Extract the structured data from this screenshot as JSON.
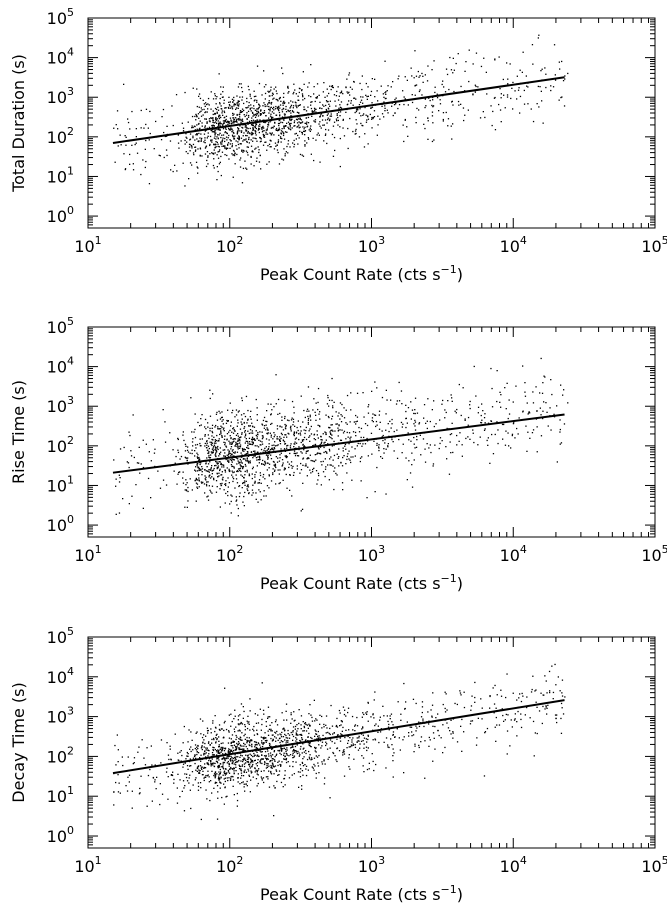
{
  "chart_data": [
    {
      "type": "scatter",
      "xlabel": "Peak Count Rate (cts s",
      "xlabel_sup": "−1",
      "xlabel_tail": ")",
      "ylabel": "Total Duration (s)",
      "xscale": "log",
      "yscale": "log",
      "xlim": [
        10,
        100000
      ],
      "ylim": [
        0.5,
        100000
      ],
      "xticks": [
        10,
        100,
        1000,
        10000,
        100000
      ],
      "xtick_exps": [
        "1",
        "2",
        "3",
        "4",
        "5"
      ],
      "yticks": [
        1,
        10,
        100,
        1000,
        10000,
        100000
      ],
      "ytick_exps": [
        "0",
        "1",
        "2",
        "3",
        "4",
        "5"
      ],
      "grid": false,
      "fit_line": {
        "x": [
          15,
          23000
        ],
        "y": [
          70,
          3200
        ]
      },
      "cloud": {
        "x_center": 80,
        "x_spread": 0.55,
        "y_center": 160,
        "y_spread": 0.45,
        "slope": 0.52,
        "n": 1700,
        "seed": 11
      }
    },
    {
      "type": "scatter",
      "xlabel": "Peak Count Rate (cts s",
      "xlabel_sup": "−1",
      "xlabel_tail": ")",
      "ylabel": "Rise Time (s)",
      "xscale": "log",
      "yscale": "log",
      "xlim": [
        10,
        100000
      ],
      "ylim": [
        0.5,
        100000
      ],
      "xticks": [
        10,
        100,
        1000,
        10000,
        100000
      ],
      "xtick_exps": [
        "1",
        "2",
        "3",
        "4",
        "5"
      ],
      "yticks": [
        1,
        10,
        100,
        1000,
        10000,
        100000
      ],
      "ytick_exps": [
        "0",
        "1",
        "2",
        "3",
        "4",
        "5"
      ],
      "grid": false,
      "fit_line": {
        "x": [
          15,
          23000
        ],
        "y": [
          21,
          620
        ]
      },
      "cloud": {
        "x_center": 80,
        "x_spread": 0.55,
        "y_center": 55,
        "y_spread": 0.55,
        "slope": 0.46,
        "n": 1700,
        "seed": 23
      }
    },
    {
      "type": "scatter",
      "xlabel": "Peak Count Rate (cts s",
      "xlabel_sup": "−1",
      "xlabel_tail": ")",
      "ylabel": "Decay Time (s)",
      "xscale": "log",
      "yscale": "log",
      "xlim": [
        10,
        100000
      ],
      "ylim": [
        0.5,
        100000
      ],
      "xticks": [
        10,
        100,
        1000,
        10000,
        100000
      ],
      "xtick_exps": [
        "1",
        "2",
        "3",
        "4",
        "5"
      ],
      "yticks": [
        1,
        10,
        100,
        1000,
        10000,
        100000
      ],
      "ytick_exps": [
        "0",
        "1",
        "2",
        "3",
        "4",
        "5"
      ],
      "grid": false,
      "fit_line": {
        "x": [
          15,
          23000
        ],
        "y": [
          38,
          2600
        ]
      },
      "cloud": {
        "x_center": 80,
        "x_spread": 0.55,
        "y_center": 90,
        "y_spread": 0.45,
        "slope": 0.57,
        "n": 1700,
        "seed": 37
      }
    }
  ]
}
